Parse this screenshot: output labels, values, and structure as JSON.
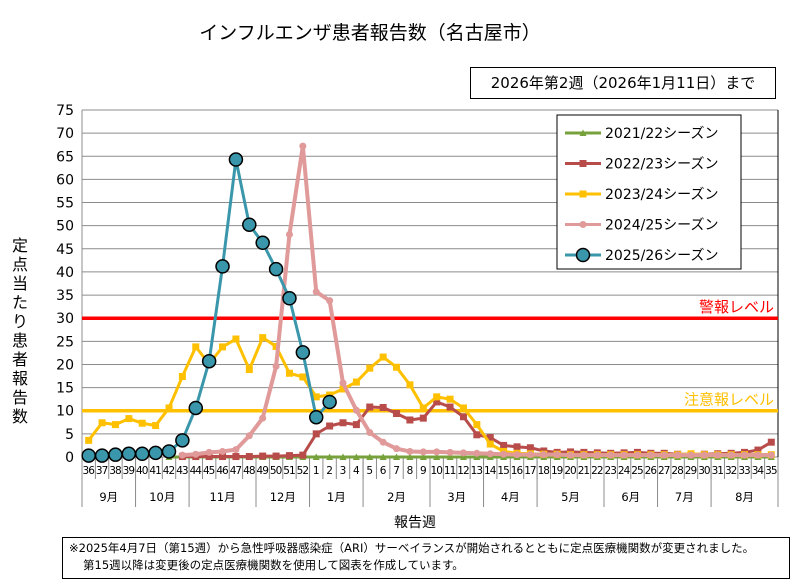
{
  "chart_data": {
    "type": "line",
    "title": "インフルエンザ患者報告数（名古屋市）",
    "subtitle": "2026年第2週（2026年1月11日）まで",
    "xlabel": "報告週",
    "ylabel": "定点当たり患者報告数",
    "ylim": [
      0,
      75
    ],
    "yticks": [
      0,
      5,
      10,
      15,
      20,
      25,
      30,
      35,
      40,
      45,
      50,
      55,
      60,
      65,
      70,
      75
    ],
    "grid": true,
    "legend_position": "top-right",
    "categories": [
      "36",
      "37",
      "38",
      "39",
      "40",
      "41",
      "42",
      "43",
      "44",
      "45",
      "46",
      "47",
      "48",
      "49",
      "50",
      "51",
      "52",
      "1",
      "2",
      "3",
      "4",
      "5",
      "6",
      "7",
      "8",
      "9",
      "10",
      "11",
      "12",
      "13",
      "14",
      "15",
      "16",
      "17",
      "18",
      "19",
      "20",
      "21",
      "22",
      "23",
      "24",
      "25",
      "26",
      "27",
      "28",
      "29",
      "30",
      "31",
      "32",
      "33",
      "34",
      "35"
    ],
    "months": [
      {
        "label": "9月",
        "span": 4
      },
      {
        "label": "10月",
        "span": 4
      },
      {
        "label": "11月",
        "span": 5
      },
      {
        "label": "12月",
        "span": 4
      },
      {
        "label": "1月",
        "span": 4
      },
      {
        "label": "2月",
        "span": 5
      },
      {
        "label": "3月",
        "span": 4
      },
      {
        "label": "4月",
        "span": 4
      },
      {
        "label": "5月",
        "span": 5
      },
      {
        "label": "6月",
        "span": 4
      },
      {
        "label": "7月",
        "span": 4
      },
      {
        "label": "8月",
        "span": 5
      }
    ],
    "reference_lines": [
      {
        "label": "警報レベル",
        "value": 30,
        "color": "#ff0000"
      },
      {
        "label": "注意報レベル",
        "value": 10,
        "color": "#ffc000"
      }
    ],
    "series": [
      {
        "name": "2021/22シーズン",
        "color": "#77a13b",
        "marker": "triangle",
        "values": [
          null,
          null,
          null,
          null,
          null,
          null,
          0,
          0,
          0,
          0,
          0,
          0,
          0,
          0,
          0,
          0,
          0,
          0,
          0,
          0,
          0,
          0,
          0,
          0,
          0,
          0,
          0,
          0,
          0,
          0,
          0,
          0,
          0,
          0,
          0,
          0,
          0,
          0,
          0,
          0,
          0,
          0,
          0,
          0,
          0,
          0,
          0,
          0,
          0,
          0,
          0,
          0
        ]
      },
      {
        "name": "2022/23シーズン",
        "color": "#b84c4a",
        "marker": "square",
        "values": [
          null,
          null,
          null,
          null,
          null,
          null,
          null,
          0.1,
          0.1,
          0.1,
          0.1,
          0.1,
          0.1,
          0.2,
          0.2,
          0.3,
          0.4,
          5.0,
          6.7,
          7.4,
          7.0,
          10.8,
          10.7,
          9.4,
          8.0,
          8.4,
          11.9,
          10.8,
          8.7,
          4.8,
          4.2,
          2.5,
          2.2,
          2.0,
          1.3,
          1.0,
          1.1,
          1.0,
          0.9,
          0.8,
          0.9,
          1.0,
          0.8,
          0.8,
          0.6,
          0.6,
          0.6,
          0.7,
          0.8,
          1.0,
          1.5,
          3.2
        ]
      },
      {
        "name": "2023/24シーズン",
        "color": "#ffc000",
        "marker": "square",
        "values": [
          3.6,
          7.4,
          7.0,
          8.3,
          7.3,
          6.8,
          10.6,
          17.4,
          23.8,
          20.1,
          23.8,
          25.5,
          18.9,
          25.8,
          23.9,
          18.1,
          17.3,
          13.0,
          13.4,
          14.7,
          16.2,
          19.2,
          21.6,
          19.4,
          15.6,
          10.6,
          13.0,
          12.5,
          10.6,
          7.0,
          2.8,
          1.2,
          0.8,
          0.7,
          0.6,
          0.6,
          0.5,
          0.5,
          0.5,
          0.5,
          0.5,
          0.5,
          0.5,
          0.5,
          0.5,
          0.7,
          0.5,
          0.5,
          0.5,
          0.5,
          0.5,
          0.5
        ]
      },
      {
        "name": "2024/25シーズン",
        "color": "#e09a9a",
        "marker": "circle",
        "values": [
          null,
          null,
          null,
          null,
          null,
          null,
          null,
          0.4,
          0.6,
          1.0,
          1.2,
          1.6,
          4.6,
          8.4,
          19.6,
          48.1,
          67.2,
          35.7,
          33.8,
          16.0,
          10.1,
          5.3,
          3.2,
          1.8,
          1.2,
          1.1,
          1.1,
          1.0,
          0.9,
          0.8,
          0.7,
          0.6,
          0.5,
          0.5,
          0.5,
          0.5,
          0.4,
          0.4,
          0.4,
          0.4,
          0.4,
          0.4,
          0.4,
          0.4,
          0.4,
          0.4,
          0.4,
          0.4,
          0.4,
          0.4,
          0.4,
          0.4
        ]
      },
      {
        "name": "2025/26シーズン",
        "color": "#3a97ab",
        "marker": "big-circle",
        "values": [
          0.3,
          0.3,
          0.5,
          0.7,
          0.7,
          0.9,
          1.2,
          3.6,
          10.6,
          20.7,
          41.2,
          64.3,
          50.2,
          46.3,
          40.6,
          34.3,
          22.6,
          8.6,
          11.9,
          null,
          null,
          null,
          null,
          null,
          null,
          null,
          null,
          null,
          null,
          null,
          null,
          null,
          null,
          null,
          null,
          null,
          null,
          null,
          null,
          null,
          null,
          null,
          null,
          null,
          null,
          null,
          null,
          null,
          null,
          null,
          null,
          null
        ]
      }
    ]
  },
  "footnote": {
    "line1": "※2025年4月7日（第15週）から急性呼吸器感染症（ARI）サーベイランスが開始されるとともに定点医療機関数が変更されました。",
    "line2": "第15週以降は変更後の定点医療機関数を使用して図表を作成しています。"
  }
}
